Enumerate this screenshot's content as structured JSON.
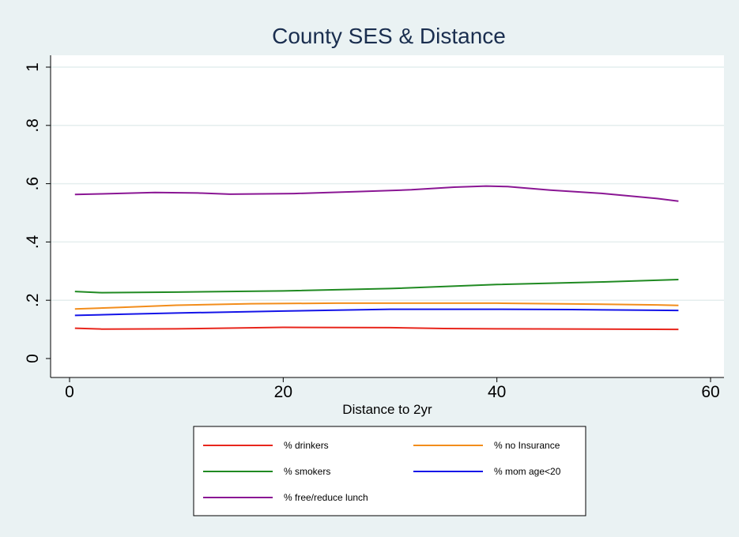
{
  "chart_data": {
    "type": "line",
    "title": "County SES & Distance",
    "xlabel": "Distance to 2yr",
    "ylabel": "",
    "xlim": [
      0,
      60
    ],
    "ylim": [
      0,
      1
    ],
    "x_ticks": [
      0,
      20,
      40,
      60
    ],
    "y_ticks": [
      0,
      0.2,
      0.4,
      0.6,
      0.8,
      1
    ],
    "x_tick_labels": [
      "0",
      "20",
      "40",
      "60"
    ],
    "y_tick_labels": [
      "0",
      ".2",
      ".4",
      ".6",
      ".8",
      "1"
    ],
    "grid": true,
    "legend_position": "bottom",
    "series": [
      {
        "name": "% drinkers",
        "color": "#e8261c",
        "x": [
          0.5,
          3,
          10,
          20,
          30,
          35,
          40,
          50,
          57
        ],
        "y": [
          0.104,
          0.101,
          0.102,
          0.107,
          0.106,
          0.103,
          0.102,
          0.101,
          0.1
        ]
      },
      {
        "name": "% no Insurance",
        "color": "#f28d1b",
        "x": [
          0.5,
          5,
          10,
          17,
          25,
          30,
          40,
          48,
          55,
          57
        ],
        "y": [
          0.17,
          0.176,
          0.183,
          0.188,
          0.19,
          0.19,
          0.19,
          0.187,
          0.184,
          0.182
        ]
      },
      {
        "name": "% smokers",
        "color": "#208a22",
        "x": [
          0.5,
          3,
          10,
          20,
          30,
          40,
          50,
          57
        ],
        "y": [
          0.23,
          0.226,
          0.228,
          0.232,
          0.24,
          0.254,
          0.263,
          0.271
        ]
      },
      {
        "name": "% mom age<20",
        "color": "#1414e8",
        "x": [
          0.5,
          5,
          10,
          20,
          30,
          40,
          47,
          50,
          57
        ],
        "y": [
          0.148,
          0.152,
          0.156,
          0.163,
          0.169,
          0.169,
          0.168,
          0.167,
          0.165
        ]
      },
      {
        "name": "% free/reduce lunch",
        "color": "#8a1694",
        "x": [
          0.5,
          3,
          8,
          12,
          15,
          21,
          27,
          32,
          36,
          39,
          41,
          45,
          50,
          55,
          57
        ],
        "y": [
          0.563,
          0.565,
          0.57,
          0.568,
          0.564,
          0.566,
          0.573,
          0.579,
          0.588,
          0.592,
          0.59,
          0.578,
          0.566,
          0.549,
          0.54
        ]
      }
    ]
  }
}
